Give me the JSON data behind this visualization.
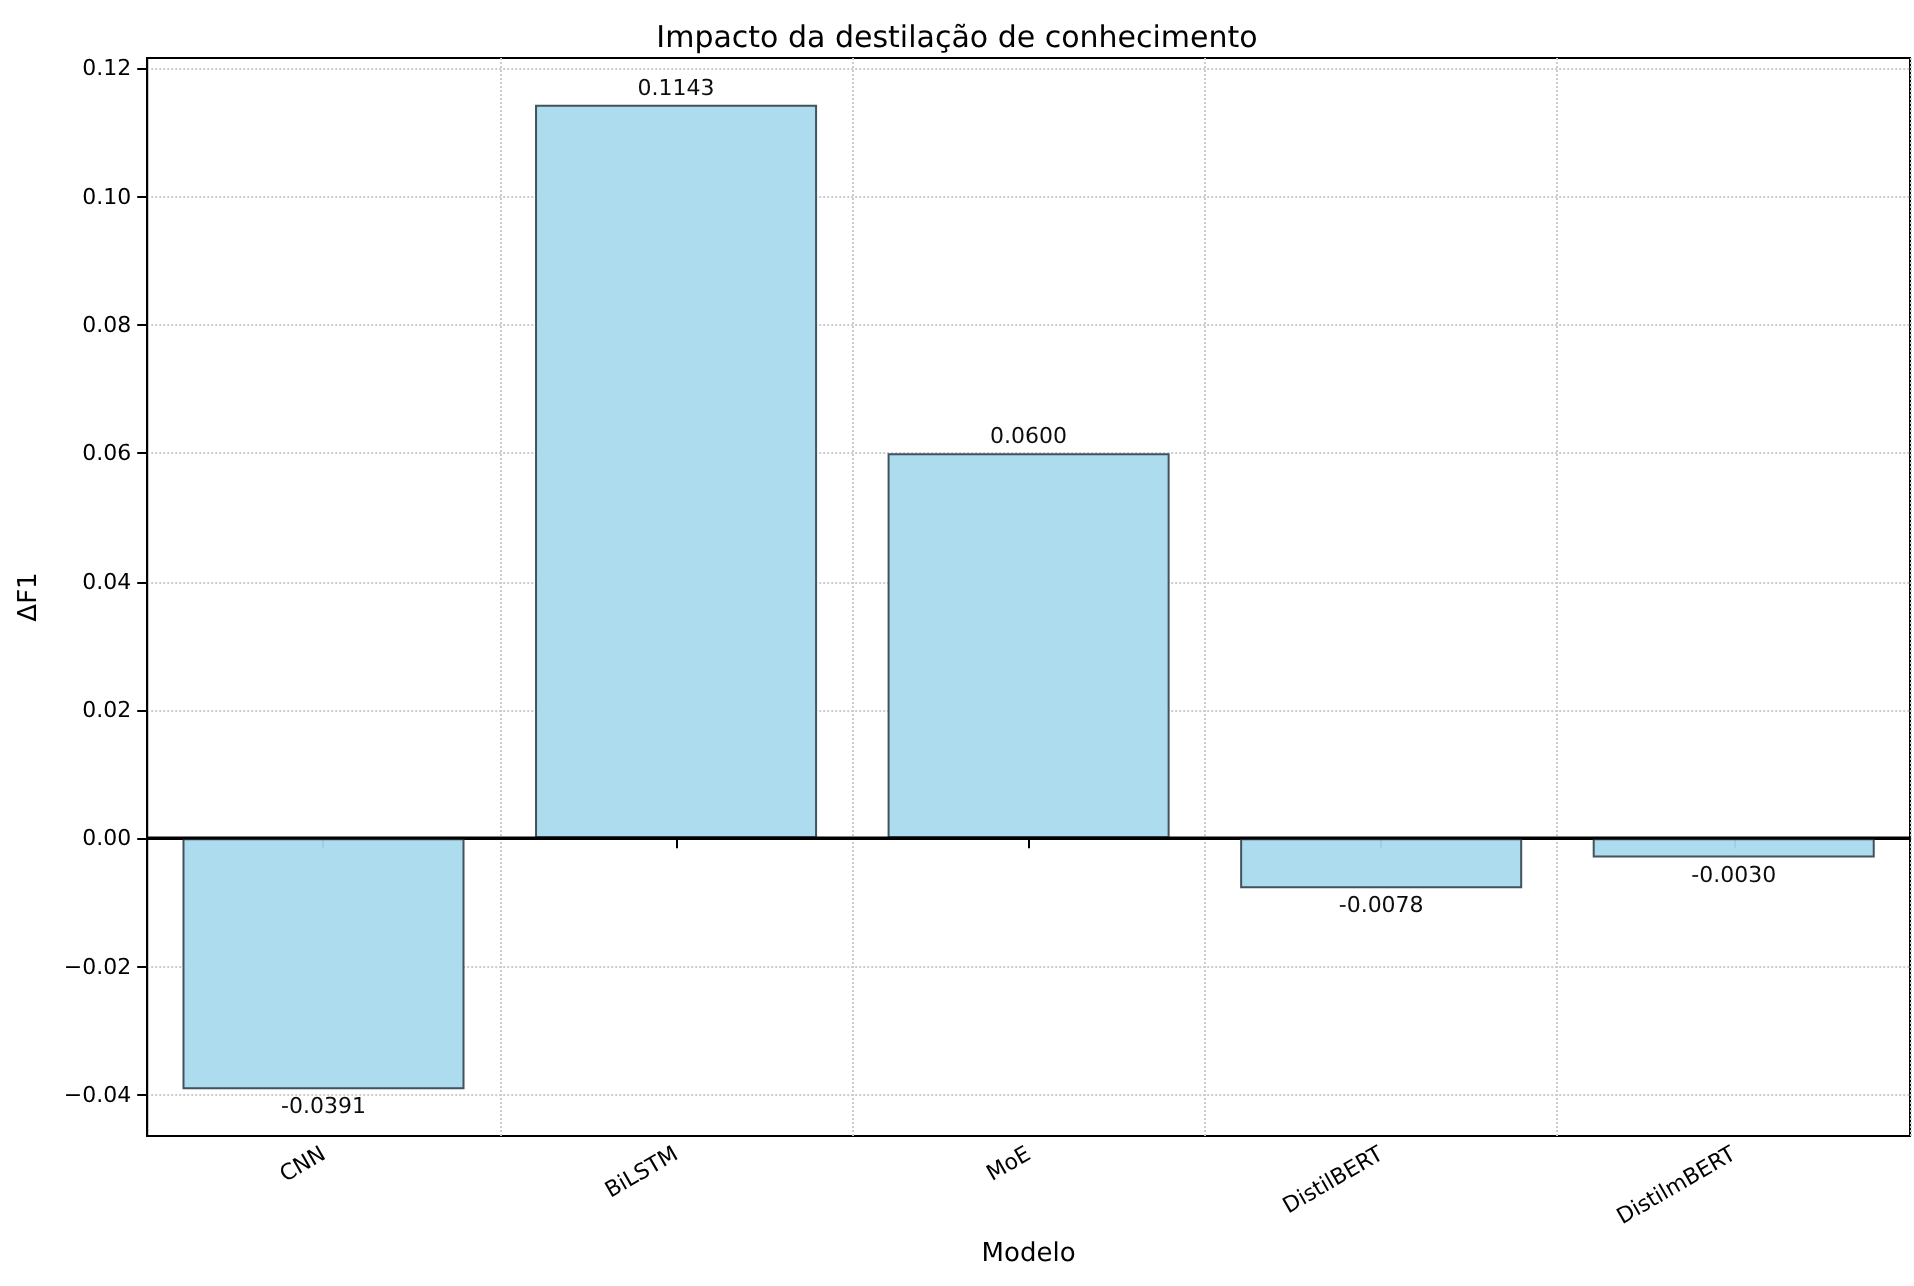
{
  "chart_data": {
    "type": "bar",
    "title": "Impacto da destilação de conhecimento",
    "xlabel": "Modelo",
    "ylabel": "ΔF1",
    "categories": [
      "CNN",
      "BiLSTM",
      "MoE",
      "DistilBERT",
      "DistilmBERT"
    ],
    "values": [
      -0.0391,
      0.1143,
      0.06,
      -0.0078,
      -0.003
    ],
    "value_labels": [
      "-0.0391",
      "0.1143",
      "0.0600",
      "-0.0078",
      "-0.0030"
    ],
    "color": "#a8daec",
    "ylim": [
      -0.0464,
      0.1216
    ],
    "yticks": [
      {
        "value": -0.04,
        "label": "−0.04"
      },
      {
        "value": -0.02,
        "label": "−0.02"
      },
      {
        "value": 0,
        "label": "0.00"
      },
      {
        "value": 0.02,
        "label": "0.02"
      },
      {
        "value": 0.04,
        "label": "0.04"
      },
      {
        "value": 0.06,
        "label": "0.06"
      },
      {
        "value": 0.08,
        "label": "0.08"
      },
      {
        "value": 0.1,
        "label": "0.10"
      },
      {
        "value": 0.12,
        "label": "0.12"
      }
    ],
    "ref_lines": [
      {
        "axis": "y",
        "value": 0,
        "color": "#000000"
      }
    ],
    "grid": true
  }
}
